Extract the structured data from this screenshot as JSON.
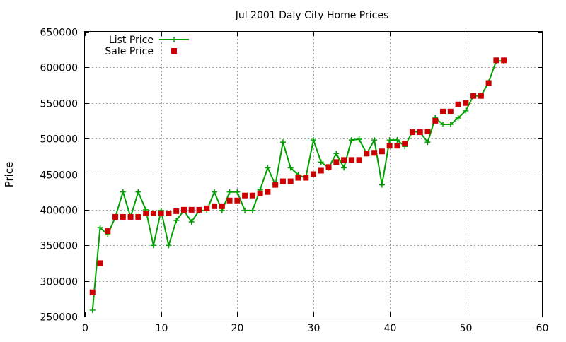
{
  "chart_data": {
    "type": "line",
    "title": "Jul 2001 Daly City Home Prices",
    "xlabel": "",
    "ylabel": "Price",
    "xlim": [
      0,
      60
    ],
    "ylim": [
      250000,
      650000
    ],
    "x_ticks": [
      0,
      10,
      20,
      30,
      40,
      50,
      60
    ],
    "y_ticks": [
      250000,
      300000,
      350000,
      400000,
      450000,
      500000,
      550000,
      600000,
      650000
    ],
    "grid": true,
    "legend_position": "top-left",
    "series": [
      {
        "name": "List Price",
        "style": "line+marker",
        "marker": "plus",
        "color": "#00a000",
        "points": [
          [
            1,
            259000
          ],
          [
            2,
            375000
          ],
          [
            3,
            365000
          ],
          [
            4,
            390000
          ],
          [
            5,
            425000
          ],
          [
            6,
            390000
          ],
          [
            7,
            425000
          ],
          [
            8,
            400000
          ],
          [
            9,
            350000
          ],
          [
            10,
            399000
          ],
          [
            11,
            350000
          ],
          [
            12,
            385000
          ],
          [
            13,
            399000
          ],
          [
            14,
            383000
          ],
          [
            15,
            399000
          ],
          [
            16,
            399000
          ],
          [
            17,
            425000
          ],
          [
            18,
            399000
          ],
          [
            19,
            425000
          ],
          [
            20,
            425000
          ],
          [
            21,
            399000
          ],
          [
            22,
            399000
          ],
          [
            23,
            428000
          ],
          [
            24,
            459000
          ],
          [
            25,
            435000
          ],
          [
            26,
            495000
          ],
          [
            27,
            459000
          ],
          [
            28,
            449000
          ],
          [
            29,
            445000
          ],
          [
            30,
            498000
          ],
          [
            31,
            467000
          ],
          [
            32,
            459000
          ],
          [
            33,
            479000
          ],
          [
            34,
            459000
          ],
          [
            35,
            498000
          ],
          [
            36,
            499000
          ],
          [
            37,
            479000
          ],
          [
            38,
            498000
          ],
          [
            39,
            435000
          ],
          [
            40,
            498000
          ],
          [
            41,
            498000
          ],
          [
            42,
            489000
          ],
          [
            43,
            510000
          ],
          [
            44,
            509000
          ],
          [
            45,
            495000
          ],
          [
            46,
            529000
          ],
          [
            47,
            520000
          ],
          [
            48,
            520000
          ],
          [
            49,
            529000
          ],
          [
            50,
            539000
          ],
          [
            51,
            560000
          ],
          [
            52,
            560000
          ],
          [
            53,
            579000
          ],
          [
            54,
            609000
          ],
          [
            55,
            609000
          ]
        ]
      },
      {
        "name": "Sale Price",
        "style": "marker",
        "marker": "square",
        "color": "#cc0000",
        "points": [
          [
            1,
            284000
          ],
          [
            2,
            325000
          ],
          [
            3,
            370000
          ],
          [
            4,
            390000
          ],
          [
            5,
            390000
          ],
          [
            6,
            390000
          ],
          [
            7,
            390000
          ],
          [
            8,
            395000
          ],
          [
            9,
            395000
          ],
          [
            10,
            395000
          ],
          [
            11,
            395000
          ],
          [
            12,
            398000
          ],
          [
            13,
            400000
          ],
          [
            14,
            400000
          ],
          [
            15,
            400000
          ],
          [
            16,
            402000
          ],
          [
            17,
            405000
          ],
          [
            18,
            405000
          ],
          [
            19,
            413000
          ],
          [
            20,
            413000
          ],
          [
            21,
            420000
          ],
          [
            22,
            420000
          ],
          [
            23,
            423000
          ],
          [
            24,
            425000
          ],
          [
            25,
            435000
          ],
          [
            26,
            440000
          ],
          [
            27,
            440000
          ],
          [
            28,
            445000
          ],
          [
            29,
            445000
          ],
          [
            30,
            450000
          ],
          [
            31,
            455000
          ],
          [
            32,
            460000
          ],
          [
            33,
            467000
          ],
          [
            34,
            470000
          ],
          [
            35,
            470000
          ],
          [
            36,
            470000
          ],
          [
            37,
            479000
          ],
          [
            38,
            480000
          ],
          [
            39,
            482000
          ],
          [
            40,
            490000
          ],
          [
            41,
            490000
          ],
          [
            42,
            493000
          ],
          [
            43,
            509000
          ],
          [
            44,
            509000
          ],
          [
            45,
            510000
          ],
          [
            46,
            525000
          ],
          [
            47,
            538000
          ],
          [
            48,
            538000
          ],
          [
            49,
            548000
          ],
          [
            50,
            550000
          ],
          [
            51,
            560000
          ],
          [
            52,
            560000
          ],
          [
            53,
            578000
          ],
          [
            54,
            610000
          ],
          [
            55,
            610000
          ]
        ]
      }
    ]
  }
}
